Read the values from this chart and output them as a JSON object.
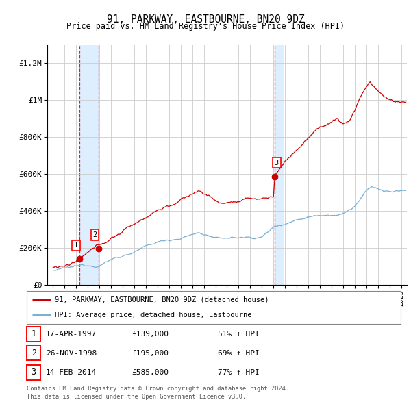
{
  "title": "91, PARKWAY, EASTBOURNE, BN20 9DZ",
  "subtitle": "Price paid vs. HM Land Registry's House Price Index (HPI)",
  "legend_line1": "91, PARKWAY, EASTBOURNE, BN20 9DZ (detached house)",
  "legend_line2": "HPI: Average price, detached house, Eastbourne",
  "transactions": [
    {
      "label": "1",
      "date": "17-APR-1997",
      "price": 139000,
      "pct": "51%",
      "x": 1997.29
    },
    {
      "label": "2",
      "date": "26-NOV-1998",
      "price": 195000,
      "pct": "69%",
      "x": 1998.9
    },
    {
      "label": "3",
      "date": "14-FEB-2014",
      "price": 585000,
      "pct": "77%",
      "x": 2014.12
    }
  ],
  "footnote1": "Contains HM Land Registry data © Crown copyright and database right 2024.",
  "footnote2": "This data is licensed under the Open Government Licence v3.0.",
  "hpi_color": "#7bafd4",
  "price_color": "#cc0000",
  "vline_color": "#cc0000",
  "highlight_color": "#ddeeff",
  "grid_color": "#cccccc",
  "ylim": [
    0,
    1300000
  ],
  "xlim": [
    1994.5,
    2025.5
  ],
  "yticks": [
    0,
    200000,
    400000,
    600000,
    800000,
    1000000,
    1200000
  ],
  "ytick_labels": [
    "£0",
    "£200K",
    "£400K",
    "£600K",
    "£800K",
    "£1M",
    "£1.2M"
  ]
}
